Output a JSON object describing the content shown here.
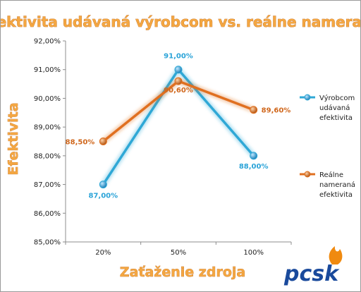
{
  "chart_data": {
    "type": "line",
    "title": "Efektivita udávaná výrobcom vs. reálne nameraná",
    "xlabel": "Zaťaženie zdroja",
    "ylabel": "Efektivita",
    "categories": [
      "20%",
      "50%",
      "100%"
    ],
    "ylim": [
      85,
      92
    ],
    "ytick_step": 1,
    "ytick_labels": [
      "85,00%",
      "86,00%",
      "87,00%",
      "88,00%",
      "89,00%",
      "90,00%",
      "91,00%",
      "92,00%"
    ],
    "grid": false,
    "legend": "right",
    "series": [
      {
        "name_lines": [
          "Výrobcom",
          "udávaná",
          "efektivita"
        ],
        "values": [
          87.0,
          91.0,
          88.0
        ],
        "labels": [
          "87,00%",
          "91,00%",
          "88,00%"
        ],
        "color": "#2fa8d6",
        "label_color": "#2aa3d8"
      },
      {
        "name_lines": [
          "Reálne",
          "nameraná",
          "efektivita"
        ],
        "values": [
          88.5,
          90.6,
          89.6
        ],
        "labels": [
          "88,50%",
          "90,60%",
          "89,60%"
        ],
        "color": "#e07020",
        "label_color": "#d0671c"
      }
    ]
  },
  "logo": {
    "text": "pcsk",
    "color": "#1a4a9c",
    "flame_color": "#f08a10"
  }
}
